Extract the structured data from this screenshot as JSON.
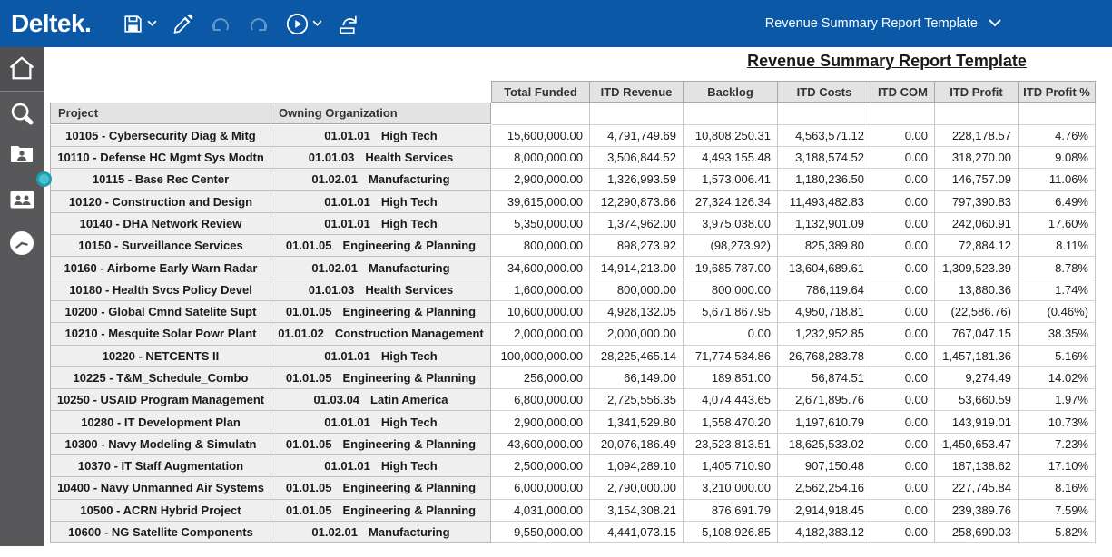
{
  "topbar": {
    "logo": "Deltek.",
    "selector_label": "Revenue Summary Report Template",
    "icons": [
      "save-icon",
      "chevron-down-icon",
      "edit-icon",
      "undo-icon",
      "redo-icon",
      "run-icon",
      "chevron-down-icon",
      "export-icon"
    ],
    "colors": {
      "bar_blue": "#0a58a6",
      "sidebar_gray": "#58585a",
      "handle_teal": "#49c2cd"
    }
  },
  "sidebar": {
    "icons": [
      "home-icon",
      "search-icon",
      "employee-icon",
      "people-icon",
      "clock-icon"
    ]
  },
  "report": {
    "title": "Revenue Summary Report Template",
    "table": {
      "left_headers": [
        "Project",
        "Owning Organization"
      ],
      "numeric_headers": [
        "Total Funded",
        "ITD Revenue",
        "Backlog",
        "ITD Costs",
        "ITD COM",
        "ITD Profit",
        "ITD Profit %"
      ],
      "rows": [
        {
          "project": "10105 - Cybersecurity Diag & Mitg",
          "org_code": "01.01.01",
          "org_name": "High Tech",
          "values": [
            "15,600,000.00",
            "4,791,749.69",
            "10,808,250.31",
            "4,563,571.12",
            "0.00",
            "228,178.57",
            "4.76%"
          ]
        },
        {
          "project": "10110 - Defense HC Mgmt Sys Modtn",
          "org_code": "01.01.03",
          "org_name": "Health Services",
          "values": [
            "8,000,000.00",
            "3,506,844.52",
            "4,493,155.48",
            "3,188,574.52",
            "0.00",
            "318,270.00",
            "9.08%"
          ]
        },
        {
          "project": "10115 - Base Rec Center",
          "org_code": "01.02.01",
          "org_name": "Manufacturing",
          "values": [
            "2,900,000.00",
            "1,326,993.59",
            "1,573,006.41",
            "1,180,236.50",
            "0.00",
            "146,757.09",
            "11.06%"
          ]
        },
        {
          "project": "10120 - Construction and Design",
          "org_code": "01.01.01",
          "org_name": "High Tech",
          "values": [
            "39,615,000.00",
            "12,290,873.66",
            "27,324,126.34",
            "11,493,482.83",
            "0.00",
            "797,390.83",
            "6.49%"
          ]
        },
        {
          "project": "10140 - DHA Network Review",
          "org_code": "01.01.01",
          "org_name": "High Tech",
          "values": [
            "5,350,000.00",
            "1,374,962.00",
            "3,975,038.00",
            "1,132,901.09",
            "0.00",
            "242,060.91",
            "17.60%"
          ]
        },
        {
          "project": "10150 - Surveillance Services",
          "org_code": "01.01.05",
          "org_name": "Engineering & Planning",
          "values": [
            "800,000.00",
            "898,273.92",
            "(98,273.92)",
            "825,389.80",
            "0.00",
            "72,884.12",
            "8.11%"
          ]
        },
        {
          "project": "10160 - Airborne Early Warn Radar",
          "org_code": "01.02.01",
          "org_name": "Manufacturing",
          "values": [
            "34,600,000.00",
            "14,914,213.00",
            "19,685,787.00",
            "13,604,689.61",
            "0.00",
            "1,309,523.39",
            "8.78%"
          ]
        },
        {
          "project": "10180 - Health Svcs Policy Devel",
          "org_code": "01.01.03",
          "org_name": "Health Services",
          "values": [
            "1,600,000.00",
            "800,000.00",
            "800,000.00",
            "786,119.64",
            "0.00",
            "13,880.36",
            "1.74%"
          ]
        },
        {
          "project": "10200 - Global Cmnd Satelite Supt",
          "org_code": "01.01.05",
          "org_name": "Engineering & Planning",
          "values": [
            "10,600,000.00",
            "4,928,132.05",
            "5,671,867.95",
            "4,950,718.81",
            "0.00",
            "(22,586.76)",
            "(0.46%)"
          ]
        },
        {
          "project": "10210 - Mesquite Solar Powr Plant",
          "org_code": "01.01.02",
          "org_name": "Construction Management",
          "values": [
            "2,000,000.00",
            "2,000,000.00",
            "0.00",
            "1,232,952.85",
            "0.00",
            "767,047.15",
            "38.35%"
          ]
        },
        {
          "project": "10220 - NETCENTS II",
          "org_code": "01.01.01",
          "org_name": "High Tech",
          "values": [
            "100,000,000.00",
            "28,225,465.14",
            "71,774,534.86",
            "26,768,283.78",
            "0.00",
            "1,457,181.36",
            "5.16%"
          ]
        },
        {
          "project": "10225 - T&M_Schedule_Combo",
          "org_code": "01.01.05",
          "org_name": "Engineering & Planning",
          "values": [
            "256,000.00",
            "66,149.00",
            "189,851.00",
            "56,874.51",
            "0.00",
            "9,274.49",
            "14.02%"
          ]
        },
        {
          "project": "10250 - USAID Program Management",
          "org_code": "01.03.04",
          "org_name": "Latin America",
          "values": [
            "6,800,000.00",
            "2,725,556.35",
            "4,074,443.65",
            "2,671,895.76",
            "0.00",
            "53,660.59",
            "1.97%"
          ]
        },
        {
          "project": "10280 - IT Development Plan",
          "org_code": "01.01.01",
          "org_name": "High Tech",
          "values": [
            "2,900,000.00",
            "1,341,529.80",
            "1,558,470.20",
            "1,197,610.79",
            "0.00",
            "143,919.01",
            "10.73%"
          ]
        },
        {
          "project": "10300 - Navy Modeling & Simulatn",
          "org_code": "01.01.05",
          "org_name": "Engineering & Planning",
          "values": [
            "43,600,000.00",
            "20,076,186.49",
            "23,523,813.51",
            "18,625,533.02",
            "0.00",
            "1,450,653.47",
            "7.23%"
          ]
        },
        {
          "project": "10370 - IT Staff Augmentation",
          "org_code": "01.01.01",
          "org_name": "High Tech",
          "values": [
            "2,500,000.00",
            "1,094,289.10",
            "1,405,710.90",
            "907,150.48",
            "0.00",
            "187,138.62",
            "17.10%"
          ]
        },
        {
          "project": "10400 - Navy Unmanned Air Systems",
          "org_code": "01.01.05",
          "org_name": "Engineering & Planning",
          "values": [
            "6,000,000.00",
            "2,790,000.00",
            "3,210,000.00",
            "2,562,254.16",
            "0.00",
            "227,745.84",
            "8.16%"
          ]
        },
        {
          "project": "10500 - ACRN Hybrid Project",
          "org_code": "01.01.05",
          "org_name": "Engineering & Planning",
          "values": [
            "4,031,000.00",
            "3,154,308.21",
            "876,691.79",
            "2,914,918.45",
            "0.00",
            "239,389.76",
            "7.59%"
          ]
        },
        {
          "project": "10600 - NG Satellite Components",
          "org_code": "01.02.01",
          "org_name": "Manufacturing",
          "values": [
            "9,550,000.00",
            "4,441,073.15",
            "5,108,926.85",
            "4,182,383.12",
            "0.00",
            "258,690.03",
            "5.82%"
          ]
        }
      ]
    }
  }
}
